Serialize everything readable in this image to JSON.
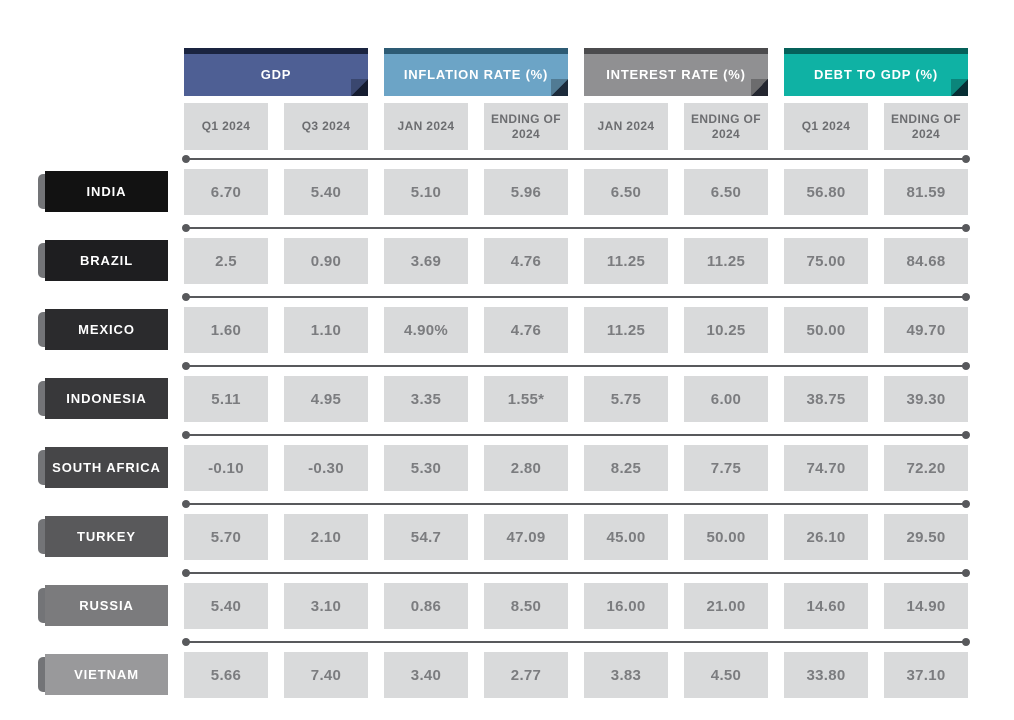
{
  "colors": {
    "group_headers": [
      {
        "bg": "#4e5f94",
        "strip": "#1a2440"
      },
      {
        "bg": "#6ca4c6",
        "strip": "#2d5b74"
      },
      {
        "bg": "#909092",
        "strip": "#4b4b4d"
      },
      {
        "bg": "#0fb2a4",
        "strip": "#05615a"
      }
    ],
    "row_shades": [
      "#121212",
      "#1e1e20",
      "#2b2b2d",
      "#38383a",
      "#464648",
      "#59595b",
      "#7b7b7d",
      "#99999b"
    ],
    "ribbon_tab": "#737477",
    "cell_background": "#d9dadb",
    "cell_text": "#7b7c7f",
    "subheader_text": "#6c6d70",
    "separator": "#58595c"
  },
  "chart_data": {
    "type": "table",
    "column_groups": [
      {
        "label": "GDP",
        "columns": [
          "Q1 2024",
          "Q3 2024"
        ]
      },
      {
        "label": "INFLATION RATE (%)",
        "columns": [
          "JAN 2024",
          "ENDING OF 2024"
        ]
      },
      {
        "label": "INTEREST RATE (%)",
        "columns": [
          "JAN 2024",
          "ENDING OF 2024"
        ]
      },
      {
        "label": "DEBT TO GDP (%)",
        "columns": [
          "Q1 2024",
          "ENDING OF 2024"
        ]
      }
    ],
    "rows": [
      {
        "country": "INDIA",
        "values": [
          "6.70",
          "5.40",
          "5.10",
          "5.96",
          "6.50",
          "6.50",
          "56.80",
          "81.59"
        ]
      },
      {
        "country": "BRAZIL",
        "values": [
          "2.5",
          "0.90",
          "3.69",
          "4.76",
          "11.25",
          "11.25",
          "75.00",
          "84.68"
        ]
      },
      {
        "country": "MEXICO",
        "values": [
          "1.60",
          "1.10",
          "4.90%",
          "4.76",
          "11.25",
          "10.25",
          "50.00",
          "49.70"
        ]
      },
      {
        "country": "INDONESIA",
        "values": [
          "5.11",
          "4.95",
          "3.35",
          "1.55*",
          "5.75",
          "6.00",
          "38.75",
          "39.30"
        ]
      },
      {
        "country": "SOUTH AFRICA",
        "values": [
          "-0.10",
          "-0.30",
          "5.30",
          "2.80",
          "8.25",
          "7.75",
          "74.70",
          "72.20"
        ]
      },
      {
        "country": "TURKEY",
        "values": [
          "5.70",
          "2.10",
          "54.7",
          "47.09",
          "45.00",
          "50.00",
          "26.10",
          "29.50"
        ]
      },
      {
        "country": "RUSSIA",
        "values": [
          "5.40",
          "3.10",
          "0.86",
          "8.50",
          "16.00",
          "21.00",
          "14.60",
          "14.90"
        ]
      },
      {
        "country": "VIETNAM",
        "values": [
          "5.66",
          "7.40",
          "3.40",
          "2.77",
          "3.83",
          "4.50",
          "33.80",
          "37.10"
        ]
      }
    ]
  }
}
